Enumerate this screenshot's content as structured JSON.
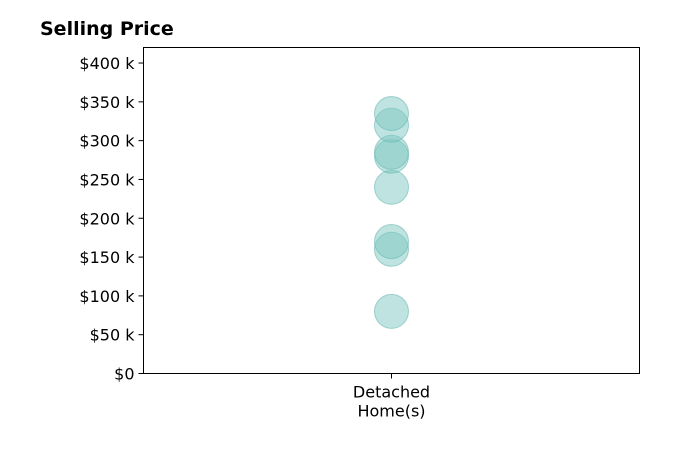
{
  "chart_data": {
    "type": "scatter",
    "title": "Selling Price",
    "xlabel": "",
    "ylabel": "",
    "categories": [
      "Detached\nHome(s)"
    ],
    "y_ticks": [
      0,
      50000,
      100000,
      150000,
      200000,
      250000,
      300000,
      350000,
      400000
    ],
    "y_tick_labels": [
      "$0",
      "$50 k",
      "$100 k",
      "$150 k",
      "$200 k",
      "$250 k",
      "$300 k",
      "$350 k",
      "$400 k"
    ],
    "ylim": [
      0,
      420000
    ],
    "grid": false,
    "legend": "none",
    "marker_color": "#7fc8c2",
    "marker_edge_color": "#5fb5ad",
    "marker_alpha": 0.5,
    "series": [
      {
        "category": "Detached\nHome(s)",
        "values": [
          80000,
          160000,
          170000,
          240000,
          280000,
          285000,
          320000,
          335000
        ]
      }
    ]
  }
}
